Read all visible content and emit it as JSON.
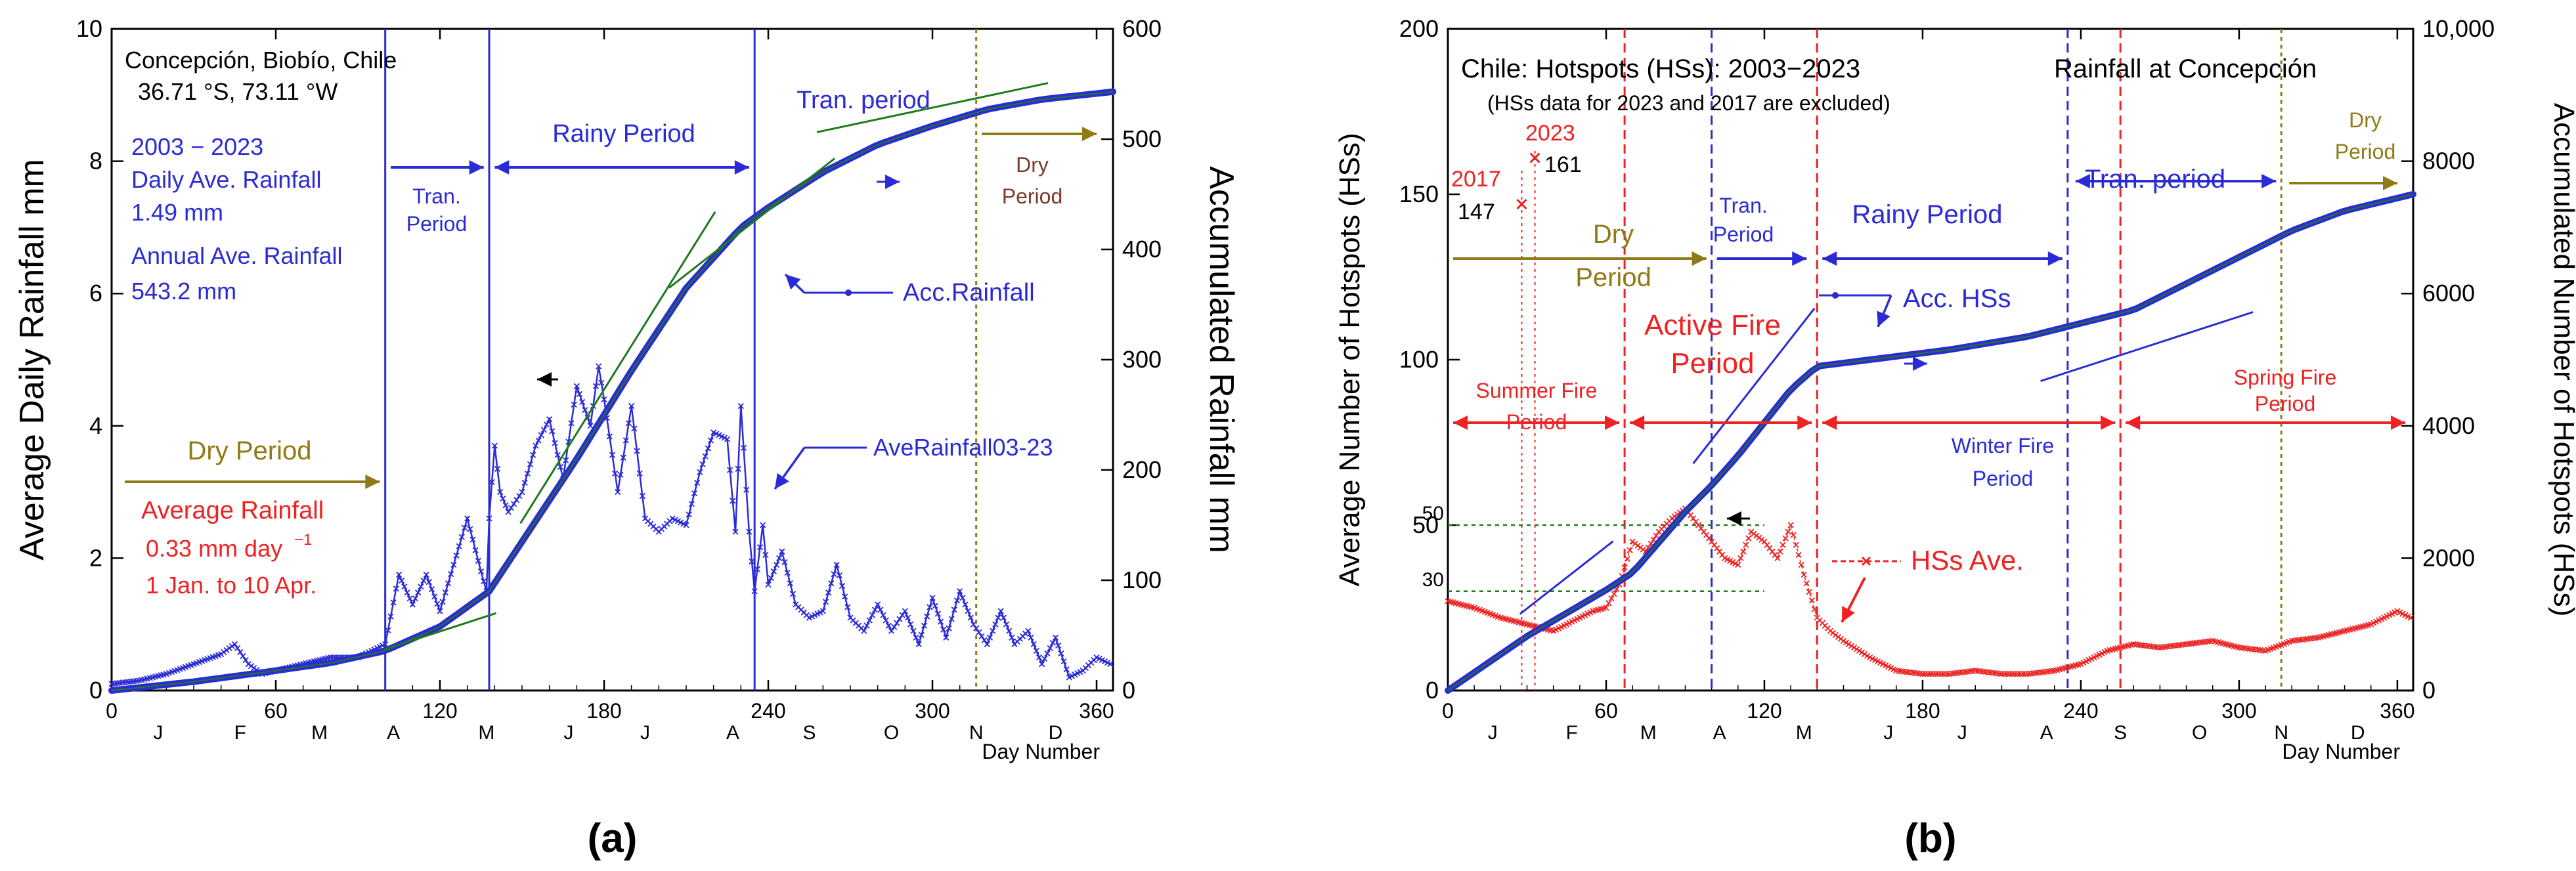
{
  "colors": {
    "blue": "#2b2bd6",
    "red": "#ee2222",
    "olive": "#8f7a16",
    "green": "#1f7a1f",
    "black": "#000000"
  },
  "chart_data": [
    {
      "id": "a",
      "type": "line",
      "panel_label": "(a)",
      "y_title_left": "Average Daily Rainfall    mm",
      "y_title_right": "Accumulated Rainfall   mm",
      "x_caption": "Day Number",
      "xlim": [
        0,
        366
      ],
      "ylim_left": [
        0,
        10
      ],
      "ylim_right": [
        0,
        600
      ],
      "x_ticks": [
        0,
        60,
        120,
        180,
        240,
        300,
        360
      ],
      "y_ticks_left": [
        0,
        2,
        4,
        6,
        8,
        10
      ],
      "y_ticks_right": [
        0,
        100,
        200,
        300,
        400,
        500,
        600
      ],
      "month_ticks": [
        {
          "label": "J",
          "day": 17
        },
        {
          "label": "F",
          "day": 47
        },
        {
          "label": "M",
          "day": 76
        },
        {
          "label": "A",
          "day": 103
        },
        {
          "label": "M",
          "day": 137
        },
        {
          "label": "J",
          "day": 167
        },
        {
          "label": "J",
          "day": 195
        },
        {
          "label": "A",
          "day": 227
        },
        {
          "label": "S",
          "day": 255
        },
        {
          "label": "O",
          "day": 285
        },
        {
          "label": "N",
          "day": 316
        },
        {
          "label": "D",
          "day": 345
        }
      ],
      "vlines": [
        {
          "day": 100,
          "color": "blue"
        },
        {
          "day": 138,
          "color": "blue"
        },
        {
          "day": 235,
          "color": "blue"
        },
        {
          "day": 316,
          "color": "olive"
        }
      ],
      "series": [
        {
          "name": "AveRainfall03-23",
          "axis": "left",
          "color": "blue",
          "x": [
            0,
            10,
            20,
            30,
            40,
            45,
            50,
            55,
            60,
            70,
            80,
            90,
            95,
            100,
            105,
            110,
            115,
            120,
            125,
            130,
            135,
            137,
            138,
            140,
            142,
            145,
            150,
            155,
            160,
            165,
            170,
            175,
            178,
            180,
            185,
            190,
            195,
            200,
            205,
            210,
            215,
            220,
            225,
            228,
            230,
            233,
            235,
            238,
            240,
            245,
            250,
            255,
            260,
            265,
            270,
            275,
            280,
            285,
            290,
            295,
            300,
            305,
            310,
            315,
            320,
            325,
            330,
            335,
            340,
            345,
            350,
            355,
            360,
            365
          ],
          "y": [
            0.1,
            0.15,
            0.25,
            0.4,
            0.55,
            0.7,
            0.4,
            0.25,
            0.3,
            0.4,
            0.5,
            0.5,
            0.6,
            0.7,
            1.75,
            1.3,
            1.75,
            1.2,
            1.9,
            2.6,
            1.8,
            1.5,
            2.6,
            3.7,
            3.0,
            2.7,
            3.0,
            3.7,
            4.1,
            3.2,
            4.6,
            4.0,
            4.9,
            4.4,
            3.0,
            4.3,
            2.6,
            2.4,
            2.6,
            2.5,
            3.3,
            3.9,
            3.8,
            2.4,
            4.3,
            2.4,
            1.5,
            2.5,
            1.6,
            2.1,
            1.3,
            1.1,
            1.2,
            1.9,
            1.1,
            0.9,
            1.3,
            0.9,
            1.2,
            0.7,
            1.4,
            0.8,
            1.5,
            1.0,
            0.7,
            1.2,
            0.7,
            0.9,
            0.4,
            0.8,
            0.2,
            0.3,
            0.5,
            0.4
          ]
        },
        {
          "name": "Acc.Rainfall",
          "axis": "right",
          "color": "blue",
          "x": [
            0,
            30,
            60,
            80,
            100,
            120,
            138,
            150,
            170,
            190,
            210,
            230,
            240,
            260,
            280,
            300,
            320,
            340,
            366
          ],
          "y": [
            0,
            8,
            18,
            25,
            36,
            58,
            90,
            135,
            210,
            290,
            365,
            420,
            438,
            470,
            495,
            512,
            527,
            536,
            543
          ]
        }
      ],
      "annotations": [
        "Concepción, Biobío, Chile",
        "36.71 °S, 73.11 °W",
        "2003 − 2023",
        "Daily Ave. Rainfall",
        "1.49 mm",
        "Annual Ave. Rainfall",
        "543.2 mm",
        "Tran.",
        "Period",
        "Rainy Period",
        "Tran. period",
        "Dry",
        "Period",
        "Acc.Rainfall",
        "AveRainfall03-23",
        "Dry Period",
        "Average Rainfall",
        "0.33 mm day",
        "−1",
        "1 Jan. to 10 Apr."
      ]
    },
    {
      "id": "b",
      "type": "scatter",
      "panel_label": "(b)",
      "y_title_left": "Average Number of Hotspots (HSs)",
      "y_title_right": "Accumulated Number of Hotspots (HSs)",
      "x_caption": "Day Number",
      "xlim": [
        0,
        366
      ],
      "ylim_left": [
        0,
        200
      ],
      "ylim_right": [
        0,
        10000
      ],
      "x_ticks": [
        0,
        60,
        120,
        180,
        240,
        300,
        360
      ],
      "y_ticks_left": [
        0,
        50,
        100,
        150,
        200
      ],
      "y_ticks_right": [
        "0",
        "2000",
        "4000",
        "6000",
        "8000",
        "10,000"
      ],
      "month_ticks": [
        {
          "label": "J",
          "day": 17
        },
        {
          "label": "F",
          "day": 47
        },
        {
          "label": "M",
          "day": 76
        },
        {
          "label": "A",
          "day": 103
        },
        {
          "label": "M",
          "day": 135
        },
        {
          "label": "J",
          "day": 167
        },
        {
          "label": "J",
          "day": 195
        },
        {
          "label": "A",
          "day": 227
        },
        {
          "label": "S",
          "day": 255
        },
        {
          "label": "O",
          "day": 285
        },
        {
          "label": "N",
          "day": 316
        },
        {
          "label": "D",
          "day": 345
        }
      ],
      "vlines": [
        {
          "day": 67,
          "color": "red"
        },
        {
          "day": 100,
          "color": "blue"
        },
        {
          "day": 140,
          "color": "red"
        },
        {
          "day": 235,
          "color": "blue"
        },
        {
          "day": 255,
          "color": "red"
        },
        {
          "day": 316,
          "color": "olive"
        }
      ],
      "hlines": [
        {
          "value": 30,
          "label": "30"
        },
        {
          "value": 50,
          "label": "50"
        }
      ],
      "series": [
        {
          "name": "HSs Ave.",
          "axis": "left",
          "color": "red",
          "x": [
            0,
            10,
            20,
            30,
            40,
            50,
            55,
            60,
            65,
            70,
            75,
            80,
            85,
            90,
            95,
            100,
            105,
            110,
            115,
            120,
            125,
            130,
            135,
            140,
            145,
            150,
            160,
            170,
            180,
            190,
            200,
            210,
            220,
            230,
            240,
            250,
            260,
            270,
            280,
            290,
            300,
            310,
            320,
            330,
            340,
            350,
            360,
            365
          ],
          "y": [
            27,
            25,
            22,
            20,
            18,
            22,
            24,
            25,
            32,
            45,
            42,
            48,
            52,
            55,
            50,
            45,
            40,
            38,
            48,
            45,
            40,
            50,
            35,
            22,
            18,
            15,
            10,
            6,
            5,
            5,
            6,
            5,
            5,
            6,
            8,
            12,
            14,
            13,
            14,
            15,
            13,
            12,
            15,
            16,
            18,
            20,
            24,
            22
          ]
        },
        {
          "name": "Acc. HSs",
          "axis": "right",
          "color": "blue",
          "x": [
            0,
            30,
            60,
            70,
            90,
            100,
            110,
            120,
            130,
            140,
            160,
            190,
            220,
            240,
            260,
            280,
            300,
            320,
            340,
            366
          ],
          "y": [
            0,
            820,
            1520,
            1780,
            2700,
            3100,
            3550,
            4050,
            4550,
            4900,
            5000,
            5150,
            5350,
            5550,
            5750,
            6150,
            6550,
            6950,
            7250,
            7500
          ]
        }
      ],
      "excluded_points": [
        {
          "label": "2017",
          "value": "147",
          "day": 28
        },
        {
          "label": "2023",
          "value": "161",
          "day": 33
        }
      ],
      "annotations": [
        "Chile: Hotspots (HSs): 2003−2023",
        "(HSs data for 2023 and 2017 are excluded)",
        "Rainfall at Concepción",
        "2017",
        "147",
        "2023",
        "161",
        "Dry",
        "Period",
        "Tran.",
        "Period",
        "Rainy Period",
        "Tran. period",
        "Dry",
        "Period",
        "Active Fire",
        "Period",
        "Acc. HSs",
        "Summer Fire",
        "Period",
        "Winter Fire",
        "Period",
        "Spring Fire",
        "Period",
        "HSs Ave.",
        "50",
        "30"
      ]
    }
  ]
}
